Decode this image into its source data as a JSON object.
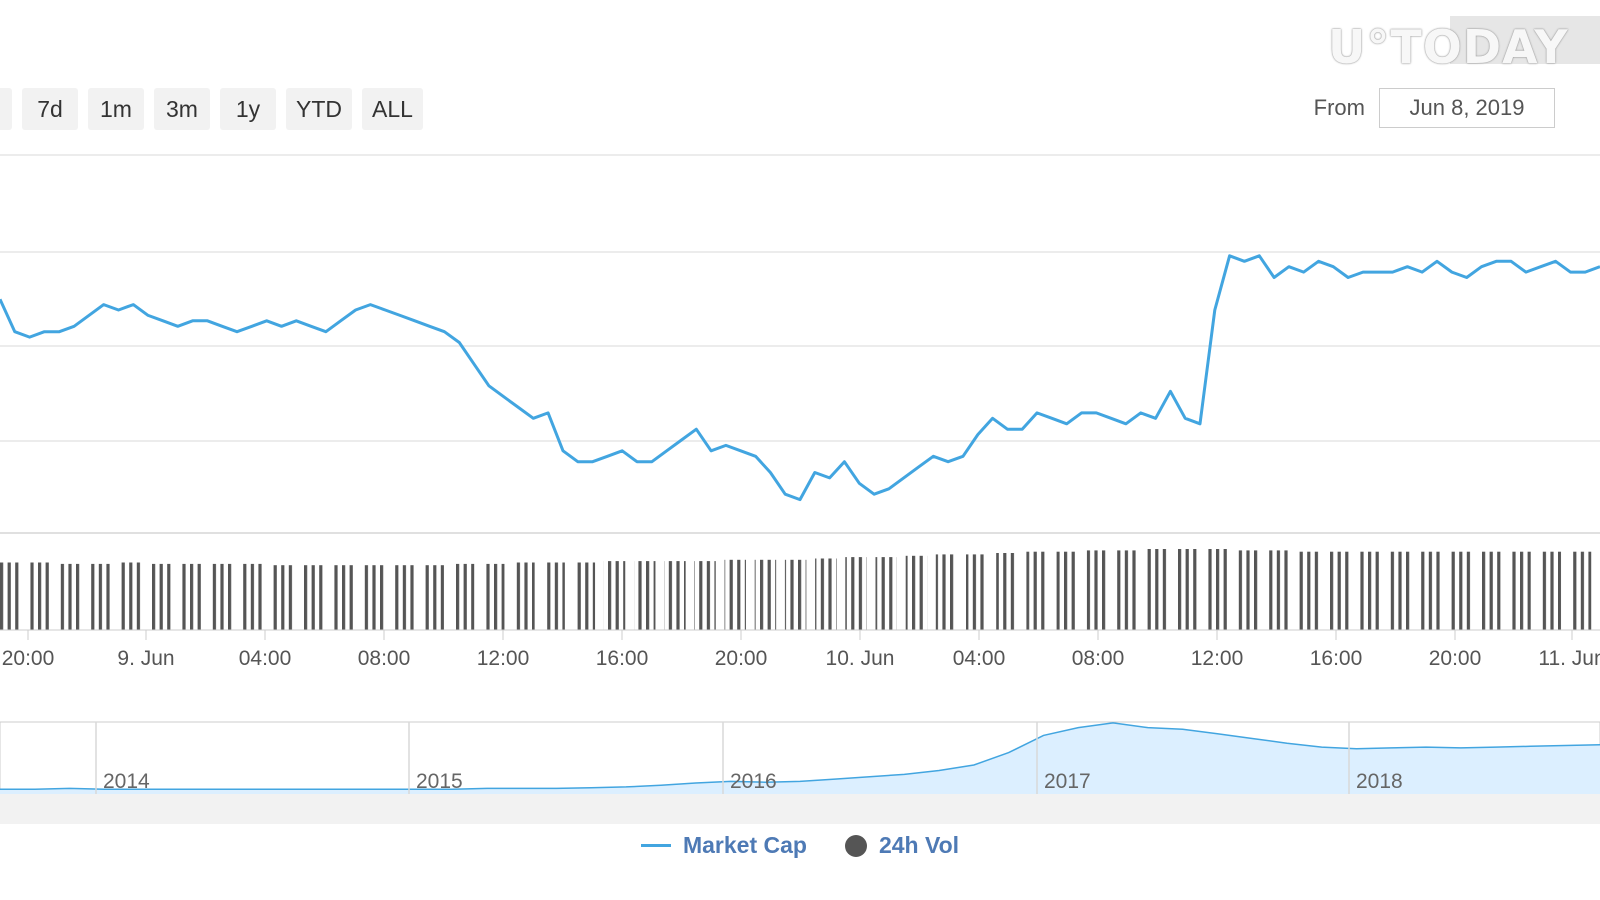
{
  "range_buttons": [
    "",
    "7d",
    "1m",
    "3m",
    "1y",
    "YTD",
    "ALL"
  ],
  "from": {
    "label": "From",
    "value": "Jun 8, 2019"
  },
  "zoom_label": "",
  "watermark": "U°TODAY",
  "colors": {
    "line": "#42a5e0",
    "volume": "#555555",
    "navigator_fill": "#dcefff",
    "legend_text": "#4e7ab5"
  },
  "legend": {
    "market_cap": "Market Cap",
    "volume": "24h Vol"
  },
  "chart_data": [
    {
      "type": "line",
      "title": "",
      "xlabel": "",
      "ylabel": "",
      "x_ticks": [
        "20:00",
        "9. Jun",
        "04:00",
        "08:00",
        "12:00",
        "16:00",
        "20:00",
        "10. Jun",
        "04:00",
        "08:00",
        "12:00",
        "16:00",
        "20:00",
        "11. Jun"
      ],
      "grid": true,
      "series": [
        {
          "name": "Market Cap",
          "values": [
            66,
            60,
            59,
            60,
            60,
            61,
            63,
            65,
            64,
            65,
            63,
            62,
            61,
            62,
            62,
            61,
            60,
            61,
            62,
            61,
            62,
            61,
            60,
            62,
            64,
            65,
            64,
            63,
            62,
            61,
            60,
            58,
            54,
            50,
            48,
            46,
            44,
            45,
            38,
            36,
            36,
            37,
            38,
            36,
            36,
            38,
            40,
            42,
            38,
            39,
            38,
            37,
            34,
            30,
            29,
            34,
            33,
            36,
            32,
            30,
            31,
            33,
            35,
            37,
            36,
            37,
            41,
            44,
            42,
            42,
            45,
            44,
            43,
            45,
            45,
            44,
            43,
            45,
            44,
            49,
            44,
            43,
            64,
            74,
            73,
            74,
            70,
            72,
            71,
            73,
            72,
            70,
            71,
            71,
            71,
            72,
            71,
            73,
            71,
            70,
            72,
            73,
            73,
            71,
            72,
            73,
            71,
            71,
            72
          ]
        },
        {
          "name": "24h Vol",
          "values": [
            50,
            50,
            49,
            49,
            50,
            49,
            49,
            49,
            49,
            48,
            48,
            48,
            48,
            48,
            48,
            49,
            49,
            50,
            50,
            50,
            51,
            51,
            51,
            51,
            52,
            52,
            52,
            53,
            54,
            54,
            55,
            56,
            56,
            57,
            58,
            58,
            59,
            59,
            60,
            60,
            60,
            59,
            59,
            58,
            58,
            58,
            58,
            58,
            58,
            58,
            58,
            58,
            58
          ]
        }
      ]
    },
    {
      "type": "area",
      "title": "",
      "x_ticks": [
        "2014",
        "2015",
        "2016",
        "2017",
        "2018"
      ],
      "series": [
        {
          "name": "Market Cap",
          "values": [
            1,
            1,
            2,
            1,
            1,
            1,
            1,
            1,
            1,
            1,
            1,
            1,
            1,
            1,
            2,
            2,
            2,
            3,
            4,
            6,
            9,
            11,
            10,
            11,
            14,
            17,
            20,
            25,
            32,
            48,
            70,
            80,
            86,
            80,
            78,
            72,
            66,
            60,
            55,
            53,
            54,
            55,
            54,
            55,
            56,
            57,
            58
          ]
        }
      ]
    }
  ]
}
